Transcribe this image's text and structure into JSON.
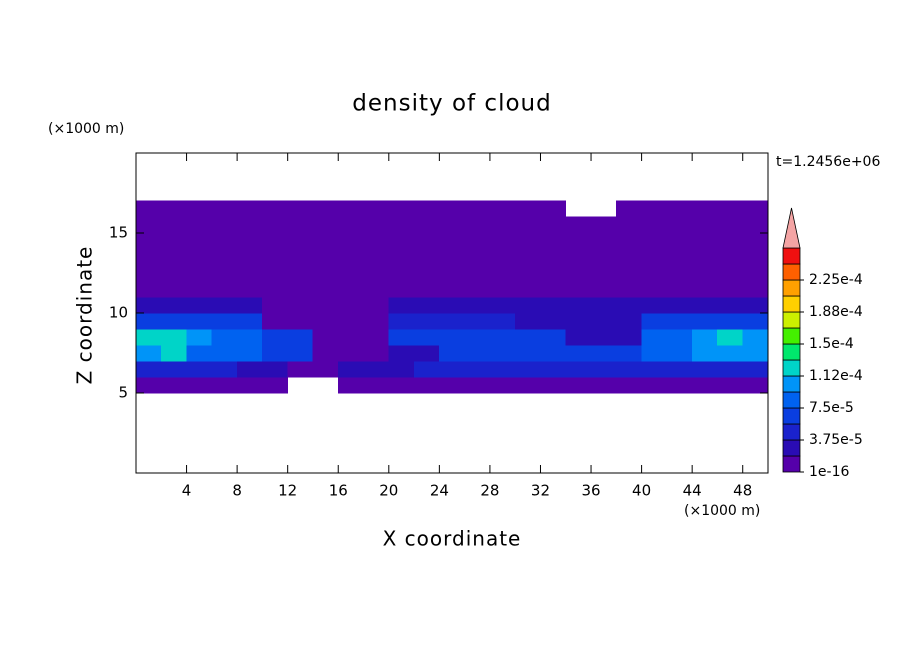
{
  "chart_data": {
    "type": "contour",
    "title": "density of cloud",
    "x_label": "X coordinate",
    "y_label": "Z coordinate",
    "x_unit": "(×1000 m)",
    "y_unit": "(×1000 m)",
    "time_label": "t=1.2456e+06",
    "xlim": [
      0,
      50
    ],
    "ylim": [
      0,
      20
    ],
    "xticks": [
      4,
      8,
      12,
      16,
      20,
      24,
      28,
      32,
      36,
      40,
      44,
      48
    ],
    "yticks": [
      5,
      10,
      15
    ],
    "x": [
      1,
      3,
      5,
      7,
      9,
      11,
      13,
      15,
      17,
      19,
      21,
      23,
      25,
      27,
      29,
      31,
      33,
      35,
      37,
      39,
      41,
      43,
      45,
      47,
      49
    ],
    "y": [
      5.5,
      6.5,
      7.5,
      8.5,
      9.5,
      10.5,
      11.5,
      12.5,
      13.5,
      14.5,
      15.5,
      16.5
    ],
    "z": [
      [
        1e-05,
        1e-05,
        1e-05,
        1e-05,
        1e-05,
        1e-05,
        null,
        null,
        1e-05,
        1e-05,
        1e-05,
        1e-05,
        1e-05,
        1e-05,
        1e-05,
        1e-05,
        1e-05,
        1e-05,
        1e-05,
        1e-05,
        1e-05,
        1e-05,
        1e-05,
        1e-05,
        1e-05
      ],
      [
        4.6e-05,
        4.6e-05,
        4.6e-05,
        4.6e-05,
        2.8e-05,
        2.8e-05,
        1e-05,
        1e-05,
        2.8e-05,
        2.8e-05,
        2.8e-05,
        4.6e-05,
        4.6e-05,
        4.6e-05,
        4.6e-05,
        4.6e-05,
        4.6e-05,
        4.6e-05,
        4.6e-05,
        4.6e-05,
        4.6e-05,
        4.6e-05,
        4.6e-05,
        4.6e-05,
        4.6e-05
      ],
      [
        0.000102,
        0.000122,
        8.4e-05,
        8.4e-05,
        8.4e-05,
        6.5e-05,
        6.5e-05,
        1e-05,
        1e-05,
        1e-05,
        2.8e-05,
        2.8e-05,
        6.5e-05,
        6.5e-05,
        6.5e-05,
        6.5e-05,
        6.5e-05,
        6.5e-05,
        6.5e-05,
        6.5e-05,
        8.4e-05,
        8.4e-05,
        0.000102,
        0.000102,
        0.000102
      ],
      [
        0.000122,
        0.000122,
        0.000102,
        8.4e-05,
        8.4e-05,
        6.5e-05,
        6.5e-05,
        1e-05,
        1e-05,
        1e-05,
        6.5e-05,
        6.5e-05,
        6.5e-05,
        6.5e-05,
        6.5e-05,
        6.5e-05,
        6.5e-05,
        2.8e-05,
        2.8e-05,
        2.8e-05,
        8.4e-05,
        8.4e-05,
        0.000102,
        0.000122,
        0.000102
      ],
      [
        6.5e-05,
        6.5e-05,
        6.5e-05,
        6.5e-05,
        6.5e-05,
        1e-05,
        1e-05,
        1e-05,
        1e-05,
        1e-05,
        4.6e-05,
        4.6e-05,
        4.6e-05,
        4.6e-05,
        4.6e-05,
        2.8e-05,
        2.8e-05,
        2.8e-05,
        2.8e-05,
        2.8e-05,
        6.5e-05,
        6.5e-05,
        6.5e-05,
        6.5e-05,
        6.5e-05
      ],
      [
        2.8e-05,
        2.8e-05,
        2.8e-05,
        2.8e-05,
        2.8e-05,
        1e-05,
        1e-05,
        1e-05,
        1e-05,
        1e-05,
        2.8e-05,
        2.8e-05,
        2.8e-05,
        2.8e-05,
        2.8e-05,
        2.8e-05,
        2.8e-05,
        2.8e-05,
        2.8e-05,
        2.8e-05,
        2.8e-05,
        2.8e-05,
        2.8e-05,
        2.8e-05,
        2.8e-05
      ],
      [
        1e-05,
        1e-05,
        1e-05,
        1e-05,
        1e-05,
        1e-05,
        1e-05,
        1e-05,
        1e-05,
        1e-05,
        1e-05,
        1e-05,
        1e-05,
        1e-05,
        1e-05,
        1e-05,
        1e-05,
        1e-05,
        1e-05,
        1e-05,
        1e-05,
        1e-05,
        1e-05,
        1e-05,
        1e-05
      ],
      [
        1e-05,
        1e-05,
        1e-05,
        1e-05,
        1e-05,
        1e-05,
        1e-05,
        1e-05,
        1e-05,
        1e-05,
        1e-05,
        1e-05,
        1e-05,
        1e-05,
        1e-05,
        1e-05,
        1e-05,
        1e-05,
        1e-05,
        1e-05,
        1e-05,
        1e-05,
        1e-05,
        1e-05,
        1e-05
      ],
      [
        1e-05,
        1e-05,
        1e-05,
        1e-05,
        1e-05,
        1e-05,
        1e-05,
        1e-05,
        1e-05,
        1e-05,
        1e-05,
        1e-05,
        1e-05,
        1e-05,
        1e-05,
        1e-05,
        1e-05,
        1e-05,
        1e-05,
        1e-05,
        1e-05,
        1e-05,
        1e-05,
        1e-05,
        1e-05
      ],
      [
        1e-05,
        1e-05,
        1e-05,
        1e-05,
        1e-05,
        1e-05,
        1e-05,
        1e-05,
        1e-05,
        1e-05,
        1e-05,
        1e-05,
        1e-05,
        1e-05,
        1e-05,
        1e-05,
        1e-05,
        1e-05,
        1e-05,
        1e-05,
        1e-05,
        1e-05,
        1e-05,
        1e-05,
        1e-05
      ],
      [
        1e-05,
        1e-05,
        1e-05,
        1e-05,
        1e-05,
        1e-05,
        1e-05,
        1e-05,
        1e-05,
        1e-05,
        1e-05,
        1e-05,
        1e-05,
        1e-05,
        1e-05,
        1e-05,
        1e-05,
        1e-05,
        1e-05,
        1e-05,
        1e-05,
        1e-05,
        1e-05,
        1e-05,
        1e-05
      ],
      [
        1e-05,
        1e-05,
        1e-05,
        1e-05,
        1e-05,
        1e-05,
        1e-05,
        1e-05,
        1e-05,
        1e-05,
        1e-05,
        1e-05,
        1e-05,
        1e-05,
        1e-05,
        1e-05,
        1e-05,
        null,
        null,
        1e-05,
        1e-05,
        1e-05,
        1e-05,
        1e-05,
        1e-05
      ]
    ],
    "levels": [
      1e-16,
      1.875e-05,
      3.75e-05,
      5.625e-05,
      7.5e-05,
      9.375e-05,
      0.0001125,
      0.00013125,
      0.00015,
      0.00016875,
      0.0001875,
      0.00020625,
      0.000225,
      0.00024375
    ],
    "level_colors": [
      "#5500aa",
      "#2a0cb4",
      "#1a22cc",
      "#0a3ee0",
      "#0062f0",
      "#0094f8",
      "#00d4c8",
      "#00e86c",
      "#44f000",
      "#ccf000",
      "#ffd000",
      "#ffa000",
      "#ff6000",
      "#f01010"
    ],
    "overflow_color": "#f4a4a4",
    "colorbar_ticks": [
      1e-16,
      {
        "value": 3.75e-05,
        "label": "3.75e-5"
      },
      {
        "value": 7.5e-05,
        "label": "7.5e-5"
      },
      {
        "value": 0.0001125,
        "label": "1.12e-4"
      },
      {
        "value": 0.00015,
        "label": "1.5e-4"
      },
      {
        "value": 0.0001875,
        "label": "1.88e-4"
      },
      {
        "value": 0.000225,
        "label": "2.25e-4"
      }
    ]
  }
}
